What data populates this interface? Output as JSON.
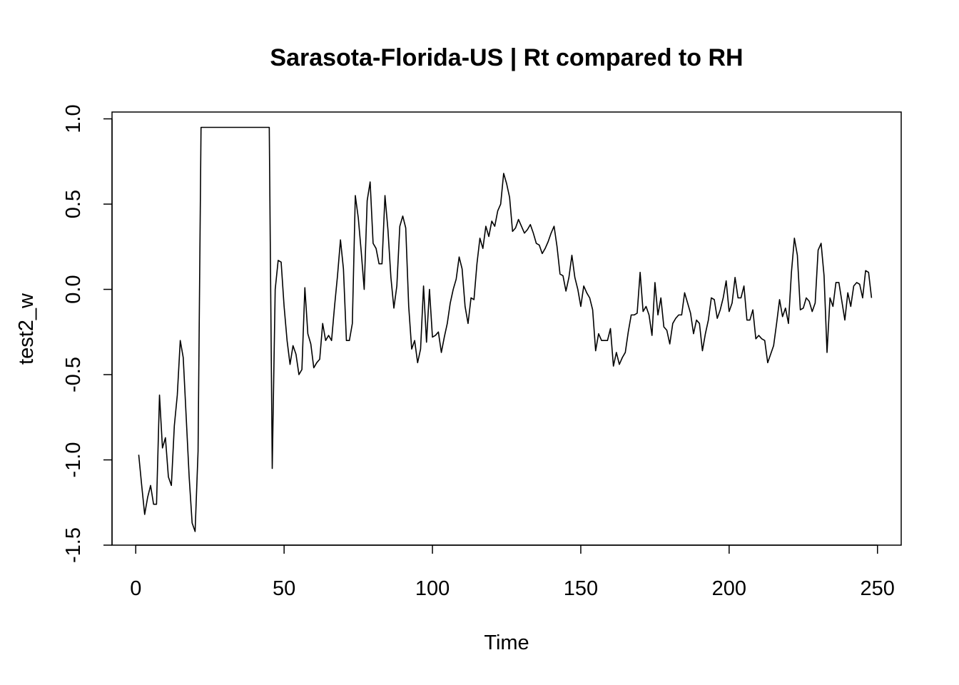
{
  "chart_data": {
    "type": "line",
    "title": "Sarasota-Florida-US | Rt compared to RH",
    "xlabel": "Time",
    "ylabel": "test2_w",
    "xlim": [
      -8,
      258
    ],
    "ylim": [
      -1.5,
      1.04
    ],
    "x_ticks": [
      0,
      50,
      100,
      150,
      200,
      250
    ],
    "x_tick_labels": [
      "0",
      "50",
      "100",
      "150",
      "200",
      "250"
    ],
    "y_ticks": [
      -1.5,
      -1.0,
      -0.5,
      0.0,
      0.5,
      1.0
    ],
    "y_tick_labels": [
      "-1.5",
      "-1.0",
      "-0.5",
      "0.0",
      "0.5",
      "1.0"
    ],
    "grid": false,
    "legend": "none",
    "line_color": "#000000",
    "series": [
      {
        "x": [
          1,
          2,
          3,
          4,
          5,
          6,
          7,
          8,
          9,
          10,
          11,
          12,
          13,
          14,
          15,
          16,
          17,
          18,
          19,
          20,
          21,
          22,
          23,
          24,
          25,
          26,
          27,
          28,
          29,
          30,
          31,
          32,
          33,
          34,
          35,
          36,
          37,
          38,
          39,
          40,
          41,
          42,
          43,
          44,
          45,
          46,
          47,
          48,
          49,
          50,
          51,
          52,
          53,
          54,
          55,
          56,
          57,
          58,
          59,
          60,
          61,
          62,
          63,
          64,
          65,
          66,
          67,
          68,
          69,
          70,
          71,
          72,
          73,
          74,
          75,
          76,
          77,
          78,
          79,
          80,
          81,
          82,
          83,
          84,
          85,
          86,
          87,
          88,
          89,
          90,
          91,
          92,
          93,
          94,
          95,
          96,
          97,
          98,
          99,
          100,
          101,
          102,
          103,
          104,
          105,
          106,
          107,
          108,
          109,
          110,
          111,
          112,
          113,
          114,
          115,
          116,
          117,
          118,
          119,
          120,
          121,
          122,
          123,
          124,
          125,
          126,
          127,
          128,
          129,
          130,
          131,
          132,
          133,
          134,
          135,
          136,
          137,
          138,
          139,
          140,
          141,
          142,
          143,
          144,
          145,
          146,
          147,
          148,
          149,
          150,
          151,
          152,
          153,
          154,
          155,
          156,
          157,
          158,
          159,
          160,
          161,
          162,
          163,
          164,
          165,
          166,
          167,
          168,
          169,
          170,
          171,
          172,
          173,
          174,
          175,
          176,
          177,
          178,
          179,
          180,
          181,
          182,
          183,
          184,
          185,
          186,
          187,
          188,
          189,
          190,
          191,
          192,
          193,
          194,
          195,
          196,
          197,
          198,
          199,
          200,
          201,
          202,
          203,
          204,
          205,
          206,
          207,
          208,
          209,
          210,
          211,
          212,
          213,
          214,
          215,
          216,
          217,
          218,
          219,
          220,
          221,
          222,
          223,
          224,
          225,
          226,
          227,
          228,
          229,
          230,
          231,
          232,
          233,
          234,
          235,
          236,
          237,
          238,
          239,
          240,
          241,
          242,
          243,
          244,
          245,
          246,
          247,
          248
        ],
        "values": [
          -0.97,
          -1.15,
          -1.32,
          -1.22,
          -1.15,
          -1.26,
          -1.26,
          -0.62,
          -0.93,
          -0.87,
          -1.1,
          -1.15,
          -0.8,
          -0.62,
          -0.3,
          -0.4,
          -0.75,
          -1.1,
          -1.37,
          -1.42,
          -0.95,
          0.95,
          0.95,
          0.95,
          0.95,
          0.95,
          0.95,
          0.95,
          0.95,
          0.95,
          0.95,
          0.95,
          0.95,
          0.95,
          0.95,
          0.95,
          0.95,
          0.95,
          0.95,
          0.95,
          0.95,
          0.95,
          0.95,
          0.95,
          0.95,
          -1.05,
          0.0,
          0.17,
          0.16,
          -0.1,
          -0.3,
          -0.44,
          -0.33,
          -0.38,
          -0.5,
          -0.47,
          0.01,
          -0.26,
          -0.32,
          -0.46,
          -0.43,
          -0.41,
          -0.2,
          -0.3,
          -0.27,
          -0.3,
          -0.1,
          0.08,
          0.29,
          0.12,
          -0.3,
          -0.3,
          -0.2,
          0.55,
          0.42,
          0.22,
          0.0,
          0.52,
          0.63,
          0.27,
          0.24,
          0.15,
          0.15,
          0.55,
          0.35,
          0.07,
          -0.11,
          0.02,
          0.37,
          0.43,
          0.36,
          -0.1,
          -0.35,
          -0.3,
          -0.43,
          -0.35,
          0.02,
          -0.31,
          0.0,
          -0.28,
          -0.27,
          -0.25,
          -0.37,
          -0.28,
          -0.2,
          -0.08,
          0.0,
          0.06,
          0.19,
          0.12,
          -0.1,
          -0.2,
          -0.05,
          -0.06,
          0.15,
          0.3,
          0.24,
          0.37,
          0.31,
          0.4,
          0.37,
          0.46,
          0.5,
          0.68,
          0.62,
          0.54,
          0.34,
          0.36,
          0.41,
          0.37,
          0.33,
          0.35,
          0.38,
          0.33,
          0.27,
          0.26,
          0.21,
          0.24,
          0.28,
          0.33,
          0.37,
          0.25,
          0.09,
          0.08,
          -0.01,
          0.07,
          0.2,
          0.07,
          0.0,
          -0.1,
          0.02,
          -0.02,
          -0.05,
          -0.12,
          -0.36,
          -0.26,
          -0.3,
          -0.3,
          -0.3,
          -0.23,
          -0.45,
          -0.37,
          -0.44,
          -0.4,
          -0.37,
          -0.25,
          -0.15,
          -0.15,
          -0.14,
          0.1,
          -0.13,
          -0.1,
          -0.15,
          -0.27,
          0.04,
          -0.15,
          -0.05,
          -0.22,
          -0.24,
          -0.32,
          -0.2,
          -0.17,
          -0.15,
          -0.15,
          -0.02,
          -0.08,
          -0.14,
          -0.26,
          -0.18,
          -0.2,
          -0.36,
          -0.26,
          -0.18,
          -0.05,
          -0.06,
          -0.17,
          -0.12,
          -0.05,
          0.05,
          -0.13,
          -0.08,
          0.07,
          -0.05,
          -0.05,
          0.02,
          -0.18,
          -0.18,
          -0.12,
          -0.29,
          -0.27,
          -0.29,
          -0.3,
          -0.43,
          -0.38,
          -0.33,
          -0.2,
          -0.06,
          -0.16,
          -0.11,
          -0.2,
          0.1,
          0.3,
          0.2,
          -0.12,
          -0.11,
          -0.05,
          -0.07,
          -0.13,
          -0.08,
          0.23,
          0.27,
          0.08,
          -0.37,
          -0.05,
          -0.1,
          0.04,
          0.04,
          -0.07,
          -0.18,
          -0.02,
          -0.1,
          0.02,
          0.04,
          0.03,
          -0.05,
          0.11,
          0.1,
          -0.05
        ]
      }
    ]
  }
}
